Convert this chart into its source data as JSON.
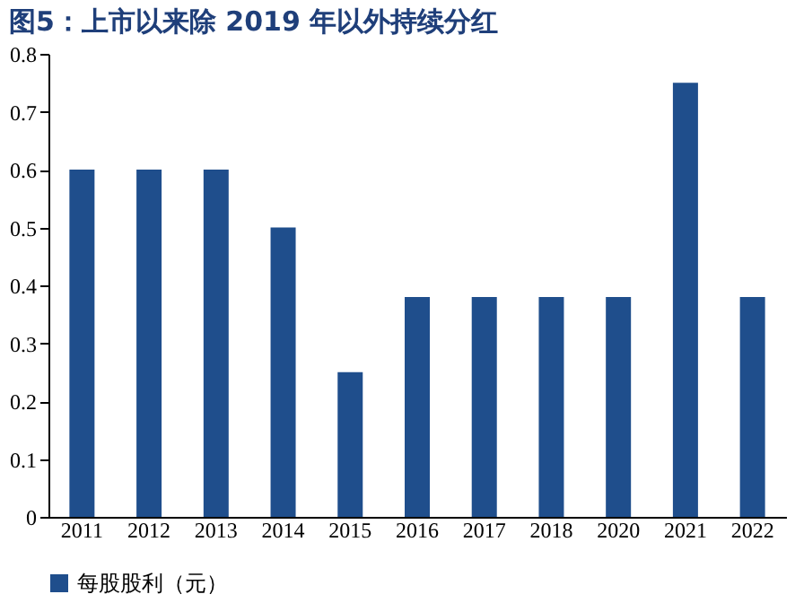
{
  "chart_data": {
    "type": "bar",
    "title": "图5：上市以来除 2019 年以外持续分红",
    "categories": [
      "2011",
      "2012",
      "2013",
      "2014",
      "2015",
      "2016",
      "2017",
      "2018",
      "2020",
      "2021",
      "2022"
    ],
    "series": [
      {
        "name": "每股股利（元）",
        "color": "#1f4e8c",
        "values": [
          0.6,
          0.6,
          0.6,
          0.5,
          0.25,
          0.38,
          0.38,
          0.38,
          0.38,
          0.75,
          0.38
        ]
      }
    ],
    "ylim": [
      0,
      0.8
    ],
    "yticks": [
      0,
      0.1,
      0.2,
      0.3,
      0.4,
      0.5,
      0.6,
      0.7,
      0.8
    ],
    "grid": false,
    "legend": "bottom"
  }
}
